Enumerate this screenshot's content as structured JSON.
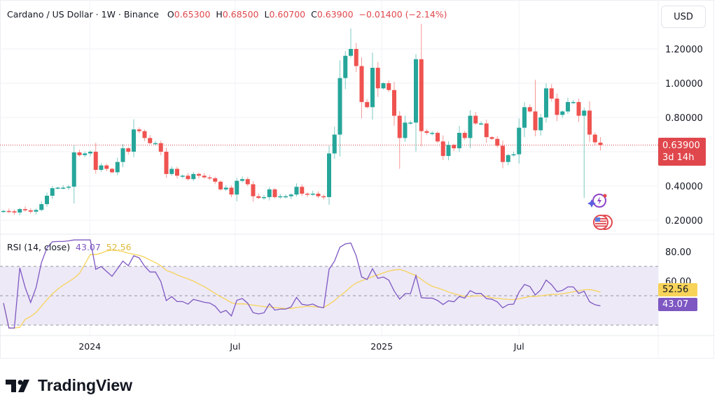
{
  "header": {
    "symbol": "Cardano / US Dollar · 1W · Binance",
    "o_label": "O",
    "o": "0.65300",
    "h_label": "H",
    "h": "0.68500",
    "l_label": "L",
    "l": "0.60700",
    "c_label": "C",
    "c": "0.63900",
    "change": "−0.01400 (−2.14%)"
  },
  "currency_button": "USD",
  "price_axis": [
    "1.20000",
    "1.00000",
    "0.80000",
    "0.40000",
    "0.20000"
  ],
  "last_price": {
    "value": "0.63900",
    "countdown": "3d 14h"
  },
  "rsi": {
    "label": "RSI (14, close)",
    "value": "43.07",
    "ma_value": "52.56",
    "axis": [
      "80.00",
      "60.00"
    ]
  },
  "time_axis": [
    "2024",
    "Jul",
    "2025",
    "Jul"
  ],
  "brand": "TradingView",
  "colors": {
    "up": "#26a69a",
    "down": "#ef5350",
    "rsi": "#7e57c2",
    "rsi_ma": "#f7d35a",
    "band": "#ede9f7"
  },
  "icons": [
    "lightning-event-icon",
    "us-flag-event-icon"
  ],
  "chart_data": {
    "type": "candlestick",
    "interval": "1W",
    "y_range": [
      0.15,
      1.35
    ],
    "close": [
      0.254,
      0.252,
      0.245,
      0.265,
      0.258,
      0.25,
      0.26,
      0.294,
      0.343,
      0.387,
      0.39,
      0.39,
      0.396,
      0.596,
      0.58,
      0.59,
      0.6,
      0.494,
      0.52,
      0.5,
      0.48,
      0.54,
      0.62,
      0.6,
      0.73,
      0.72,
      0.68,
      0.65,
      0.65,
      0.6,
      0.47,
      0.5,
      0.46,
      0.46,
      0.44,
      0.47,
      0.46,
      0.45,
      0.445,
      0.425,
      0.38,
      0.39,
      0.35,
      0.43,
      0.44,
      0.41,
      0.34,
      0.33,
      0.335,
      0.38,
      0.335,
      0.34,
      0.34,
      0.35,
      0.395,
      0.355,
      0.35,
      0.355,
      0.34,
      0.335,
      0.59,
      0.7,
      1.03,
      1.16,
      1.2,
      1.1,
      0.89,
      0.86,
      1.09,
      0.97,
      1.0,
      0.96,
      0.81,
      0.68,
      0.77,
      0.77,
      1.14,
      0.72,
      0.71,
      0.71,
      0.66,
      0.575,
      0.64,
      0.62,
      0.71,
      0.68,
      0.81,
      0.765,
      0.765,
      0.685,
      0.675,
      0.635,
      0.54,
      0.58,
      0.585,
      0.74,
      0.86,
      0.835,
      0.725,
      0.8,
      0.97,
      0.91,
      0.815,
      0.835,
      0.89,
      0.89,
      0.81,
      0.84,
      0.7,
      0.655,
      0.639
    ],
    "last_candle": {
      "open": 0.653,
      "high": 0.685,
      "low": 0.607,
      "close": 0.639
    },
    "notable_highs": {
      "64": 1.32,
      "76": 1.17,
      "98": 1.02
    },
    "notable_lows": {
      "73": 0.5,
      "107": 0.33
    },
    "rsi_range": [
      30,
      70
    ]
  }
}
